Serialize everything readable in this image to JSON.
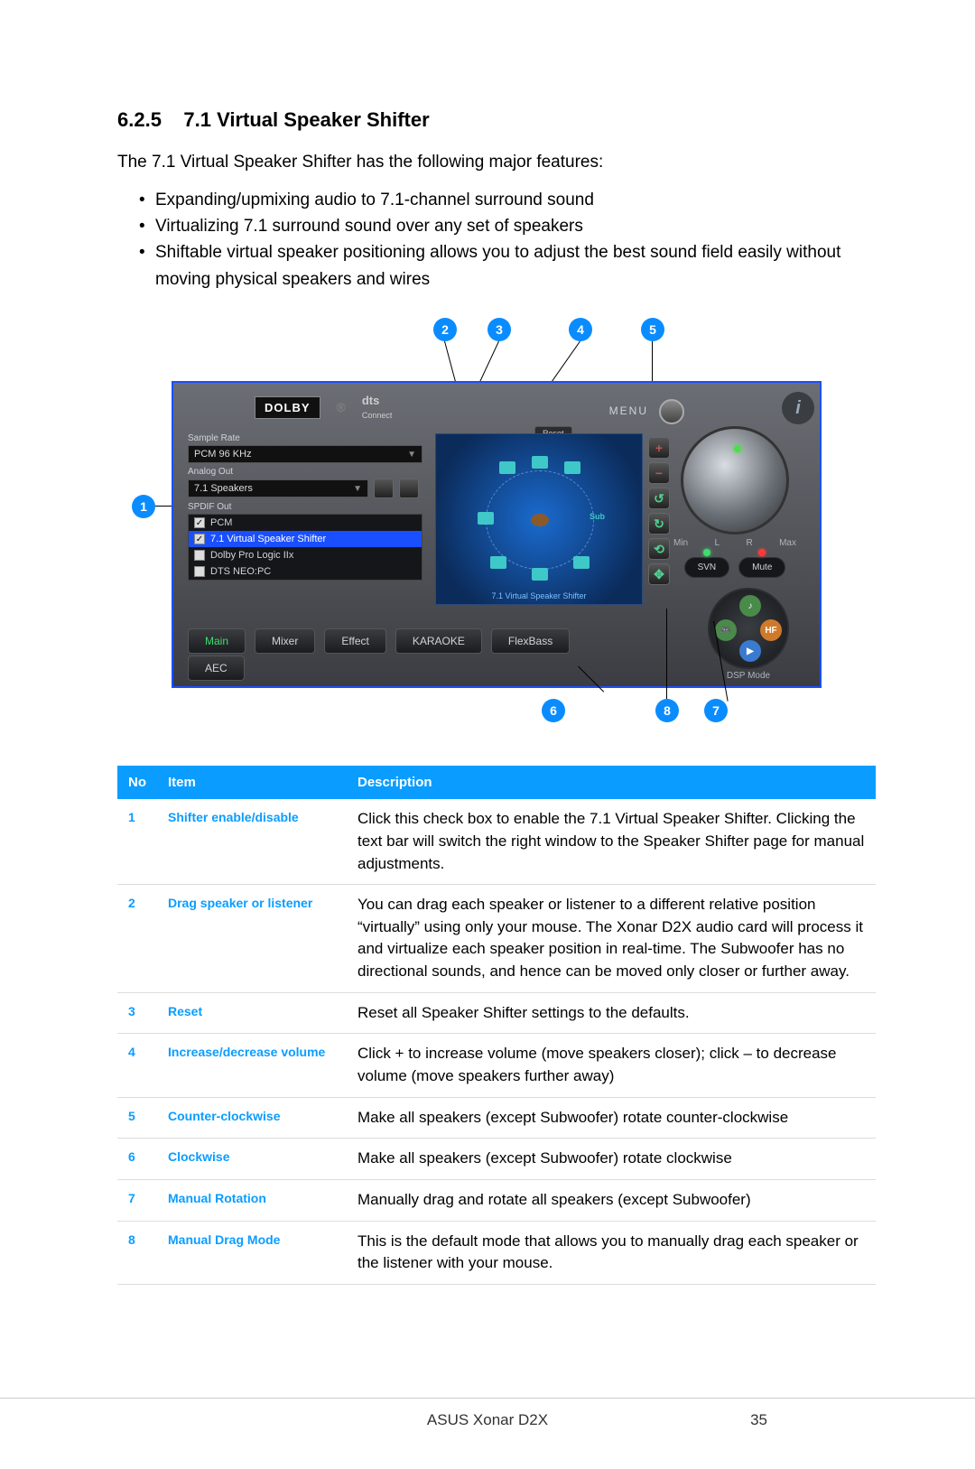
{
  "heading": {
    "number": "6.2.5",
    "title": "7.1 Virtual Speaker Shifter"
  },
  "intro": "The 7.1 Virtual Speaker Shifter has the following major features:",
  "features": [
    "Expanding/upmixing audio to 7.1-channel surround sound",
    "Virtualizing 7.1 surround sound over any set of speakers",
    "Shiftable virtual speaker positioning allows you to adjust the best sound field easily without moving physical speakers and wires"
  ],
  "callouts_top": [
    "2",
    "3",
    "4",
    "5"
  ],
  "callouts_left": "1",
  "callouts_bottom": [
    "6",
    "8",
    "7"
  ],
  "screenshot": {
    "dolby": "DOLBY",
    "dts": "dts",
    "dts_sub": "Connect",
    "menu": "MENU",
    "sample_rate_label": "Sample Rate",
    "sample_rate_value": "PCM 96 KHz",
    "analog_out_label": "Analog Out",
    "analog_out_value": "7.1 Speakers",
    "spdif_label": "SPDIF Out",
    "spdif_items": [
      {
        "label": "PCM",
        "checked": true,
        "selected": false
      },
      {
        "label": "7.1 Virtual Speaker Shifter",
        "checked": true,
        "selected": true
      },
      {
        "label": "Dolby Pro Logic IIx",
        "checked": false,
        "selected": false
      },
      {
        "label": "DTS NEO:PC",
        "checked": false,
        "selected": false
      }
    ],
    "reset": "Reset",
    "viz_title": "7.1 Virtual Speaker Shifter",
    "sub_label": "Sub",
    "tabs": [
      "Main",
      "Mixer",
      "Effect",
      "KARAOKE",
      "FlexBass"
    ],
    "aec": "AEC",
    "knob_min": "Min",
    "knob_max": "Max",
    "knob_l": "L",
    "knob_r": "R",
    "svn": "SVN",
    "mute": "Mute",
    "dsp_label": "DSP Mode",
    "dsp_hf": "HF"
  },
  "table": {
    "headers": [
      "No",
      "Item",
      "Description"
    ],
    "rows": [
      {
        "no": "1",
        "item": "Shifter enable/disable",
        "desc": "Click this check box to enable the 7.1 Virtual Speaker Shifter. Clicking the text bar will switch the right window to the Speaker Shifter page for manual adjustments."
      },
      {
        "no": "2",
        "item": "Drag speaker or listener",
        "desc": "You can drag each speaker or listener to a different relative position “virtually” using only your mouse. The Xonar D2X audio card will process it and virtualize each speaker position in real-time. The Subwoofer has no directional sounds, and hence can be moved only closer or further away."
      },
      {
        "no": "3",
        "item": "Reset",
        "desc": "Reset all Speaker Shifter settings to the defaults."
      },
      {
        "no": "4",
        "item": "Increase/decrease volume",
        "desc": "Click + to increase volume (move speakers closer); click – to decrease volume (move speakers further away)"
      },
      {
        "no": "5",
        "item": "Counter-clockwise",
        "desc": "Make all speakers (except Subwoofer) rotate counter-clockwise"
      },
      {
        "no": "6",
        "item": "Clockwise",
        "desc": "Make all speakers (except Subwoofer) rotate clockwise"
      },
      {
        "no": "7",
        "item": "Manual Rotation",
        "desc": "Manually drag and rotate all speakers (except Subwoofer)"
      },
      {
        "no": "8",
        "item": "Manual Drag Mode",
        "desc": "This is the default mode that allows you to manually drag each speaker or the listener with your mouse."
      }
    ]
  },
  "footer": {
    "product": "ASUS Xonar D2X",
    "page": "35"
  },
  "colors": {
    "accent": "#0a9dff",
    "callout": "#0a8cff",
    "border": "#1a4fff"
  }
}
